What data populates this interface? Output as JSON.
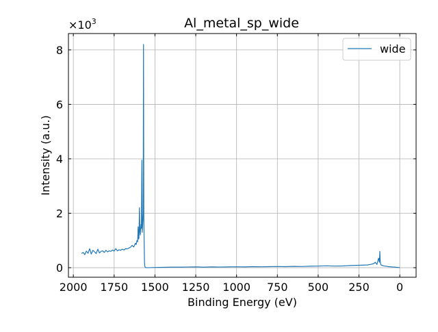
{
  "chart_data": {
    "type": "line",
    "title": "Al_metal_sp_wide",
    "xlabel": "Binding Energy (eV)",
    "ylabel": "Intensity (a.u.)",
    "y_scale_label": "×10",
    "y_scale_exponent": "3",
    "xlim": [
      2030,
      -100
    ],
    "ylim": [
      -350,
      8600
    ],
    "x_inverted": true,
    "grid": true,
    "legend_position": "top-right",
    "x_ticks": [
      2000,
      1750,
      1500,
      1250,
      1000,
      750,
      500,
      250,
      0
    ],
    "x_tick_labels": [
      "2000",
      "1750",
      "1500",
      "1250",
      "1000",
      "750",
      "500",
      "250",
      "0"
    ],
    "y_ticks": [
      0,
      2000,
      4000,
      6000,
      8000
    ],
    "y_tick_labels": [
      "0",
      "2",
      "4",
      "6",
      "8"
    ],
    "series": [
      {
        "name": "wide",
        "color": "#1f77b4",
        "x": [
          1950,
          1940,
          1930,
          1920,
          1910,
          1900,
          1890,
          1880,
          1870,
          1860,
          1850,
          1840,
          1830,
          1820,
          1810,
          1800,
          1790,
          1780,
          1770,
          1760,
          1750,
          1740,
          1730,
          1720,
          1710,
          1700,
          1690,
          1680,
          1670,
          1660,
          1650,
          1640,
          1630,
          1620,
          1615,
          1610,
          1606,
          1603,
          1600,
          1598,
          1595,
          1592,
          1590,
          1588,
          1585,
          1583,
          1580,
          1578,
          1576,
          1574,
          1572,
          1570,
          1568,
          1566,
          1564,
          1562,
          1560,
          1558,
          1555,
          1550,
          1540,
          1500,
          1450,
          1400,
          1350,
          1300,
          1250,
          1200,
          1150,
          1100,
          1050,
          1000,
          950,
          900,
          850,
          800,
          750,
          700,
          650,
          600,
          550,
          500,
          450,
          400,
          350,
          300,
          250,
          200,
          180,
          160,
          150,
          140,
          130,
          125,
          122,
          120,
          118,
          115,
          110,
          100,
          90,
          80,
          70,
          60,
          50,
          40,
          30,
          20,
          10,
          0
        ],
        "values": [
          520,
          560,
          480,
          610,
          530,
          700,
          500,
          640,
          580,
          520,
          680,
          540,
          600,
          620,
          560,
          640,
          580,
          620,
          600,
          650,
          610,
          700,
          620,
          660,
          640,
          680,
          650,
          700,
          690,
          720,
          750,
          820,
          760,
          900,
          850,
          1000,
          950,
          1500,
          1050,
          1100,
          2200,
          1300,
          1200,
          1400,
          1600,
          1450,
          3950,
          1300,
          1500,
          1700,
          2000,
          8200,
          1800,
          900,
          200,
          60,
          20,
          10,
          0,
          0,
          0,
          10,
          15,
          20,
          20,
          25,
          30,
          20,
          30,
          25,
          30,
          35,
          30,
          40,
          35,
          40,
          45,
          40,
          50,
          45,
          55,
          60,
          70,
          60,
          65,
          80,
          90,
          100,
          120,
          150,
          200,
          120,
          350,
          200,
          600,
          250,
          150,
          100,
          90,
          70,
          60,
          50,
          40,
          35,
          30,
          25,
          20,
          15,
          10,
          5
        ]
      }
    ]
  }
}
